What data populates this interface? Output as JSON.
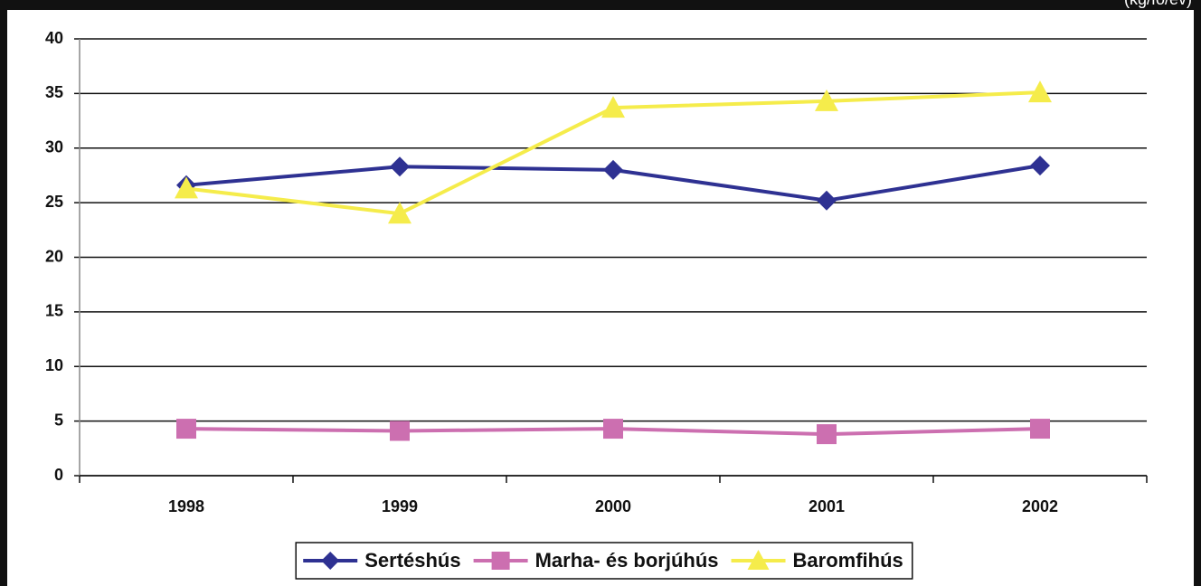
{
  "chart_data": {
    "type": "line",
    "subtitle": "(kg/fő/év)",
    "categories": [
      "1998",
      "1999",
      "2000",
      "2001",
      "2002"
    ],
    "series": [
      {
        "name": "Sertéshús",
        "color": "#2e3192",
        "marker": "diamond",
        "values": [
          26.6,
          28.3,
          28.0,
          25.2,
          28.4
        ]
      },
      {
        "name": "Marha- és borjúhús",
        "color": "#cc6fb0",
        "marker": "square",
        "values": [
          4.3,
          4.1,
          4.3,
          3.8,
          4.3
        ]
      },
      {
        "name": "Baromfihús",
        "color": "#f5ec4b",
        "marker": "triangle",
        "values": [
          26.3,
          24.0,
          33.7,
          34.3,
          35.1
        ]
      }
    ],
    "ylim": [
      0,
      40
    ],
    "yticks": [
      0,
      5,
      10,
      15,
      20,
      25,
      30,
      35,
      40
    ],
    "grid": true,
    "legend": "bottom"
  }
}
